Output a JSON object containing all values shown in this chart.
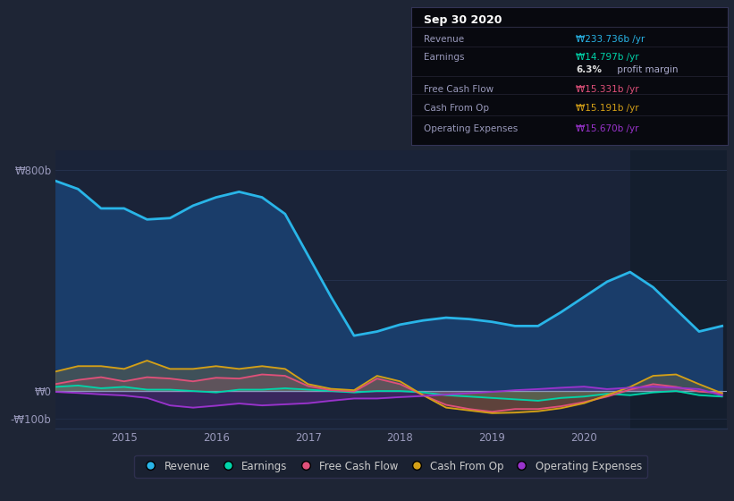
{
  "bg_color": "#1e2535",
  "chart_bg_color": "#1a2338",
  "highlight_bg": "#141e2e",
  "grid_color": "#263350",
  "zero_line_color": "#8899bb",
  "revenue_color": "#29b5e8",
  "revenue_fill": "#1a3d6a",
  "earnings_color": "#00d4aa",
  "fcf_color": "#e0507a",
  "cfo_color": "#d4a017",
  "opex_color": "#9933cc",
  "years": [
    2013.75,
    2014.0,
    2014.25,
    2014.5,
    2014.75,
    2015.0,
    2015.25,
    2015.5,
    2015.75,
    2016.0,
    2016.25,
    2016.5,
    2016.75,
    2017.0,
    2017.25,
    2017.5,
    2017.75,
    2018.0,
    2018.25,
    2018.5,
    2018.75,
    2019.0,
    2019.25,
    2019.5,
    2019.75,
    2020.0,
    2020.25,
    2020.5,
    2020.75,
    2021.0
  ],
  "revenue": [
    760,
    730,
    660,
    660,
    620,
    625,
    670,
    700,
    720,
    700,
    640,
    490,
    340,
    200,
    215,
    240,
    255,
    265,
    260,
    250,
    235,
    235,
    285,
    340,
    395,
    430,
    375,
    295,
    215,
    235
  ],
  "earnings": [
    15,
    20,
    10,
    15,
    5,
    5,
    0,
    -5,
    5,
    5,
    10,
    5,
    0,
    -5,
    0,
    0,
    -5,
    -15,
    -20,
    -25,
    -30,
    -35,
    -25,
    -20,
    -10,
    -15,
    -5,
    0,
    -15,
    -20
  ],
  "fcf": [
    25,
    40,
    50,
    35,
    50,
    45,
    35,
    48,
    45,
    60,
    55,
    18,
    3,
    -2,
    45,
    25,
    -15,
    -50,
    -65,
    -75,
    -65,
    -65,
    -55,
    -40,
    -20,
    5,
    25,
    15,
    -2,
    -8
  ],
  "cfo": [
    70,
    90,
    90,
    80,
    110,
    80,
    80,
    90,
    80,
    90,
    80,
    25,
    8,
    3,
    55,
    35,
    -15,
    -60,
    -70,
    -80,
    -78,
    -73,
    -62,
    -44,
    -15,
    15,
    55,
    60,
    25,
    -8
  ],
  "opex": [
    -3,
    -7,
    -12,
    -16,
    -25,
    -52,
    -60,
    -53,
    -45,
    -52,
    -48,
    -44,
    -35,
    -27,
    -27,
    -22,
    -18,
    -13,
    -8,
    -3,
    3,
    7,
    12,
    16,
    7,
    12,
    16,
    12,
    7,
    -16
  ],
  "xlim": [
    2013.75,
    2021.05
  ],
  "ylim": [
    -135,
    870
  ],
  "yticks": [
    -100,
    0,
    800
  ],
  "ylabels": [
    "-₩100b",
    "₩0",
    "₩800b"
  ],
  "xtick_positions": [
    2014.5,
    2015.5,
    2016.5,
    2017.5,
    2018.5,
    2019.5,
    2020.5
  ],
  "xtick_labels": [
    "2015",
    "2016",
    "2017",
    "2018",
    "2019",
    "2020",
    ""
  ],
  "highlight_x_start": 2020.0,
  "highlight_x_end": 2021.05,
  "infobox_title": "Sep 30 2020",
  "infobox_rows": [
    {
      "label": "Revenue",
      "value": "₩233.736b /yr",
      "value_color": "#29b5e8"
    },
    {
      "label": "Earnings",
      "value": "₩14.797b /yr",
      "value_color": "#00d4aa"
    },
    {
      "label": "",
      "value": "",
      "value_color": "#cccccc"
    },
    {
      "label": "Free Cash Flow",
      "value": "₩15.331b /yr",
      "value_color": "#e0507a"
    },
    {
      "label": "Cash From Op",
      "value": "₩15.191b /yr",
      "value_color": "#d4a017"
    },
    {
      "label": "Operating Expenses",
      "value": "₩15.670b /yr",
      "value_color": "#9933cc"
    }
  ],
  "legend_items": [
    {
      "label": "Revenue",
      "color": "#29b5e8"
    },
    {
      "label": "Earnings",
      "color": "#00d4aa"
    },
    {
      "label": "Free Cash Flow",
      "color": "#e0507a"
    },
    {
      "label": "Cash From Op",
      "color": "#d4a017"
    },
    {
      "label": "Operating Expenses",
      "color": "#9933cc"
    }
  ]
}
